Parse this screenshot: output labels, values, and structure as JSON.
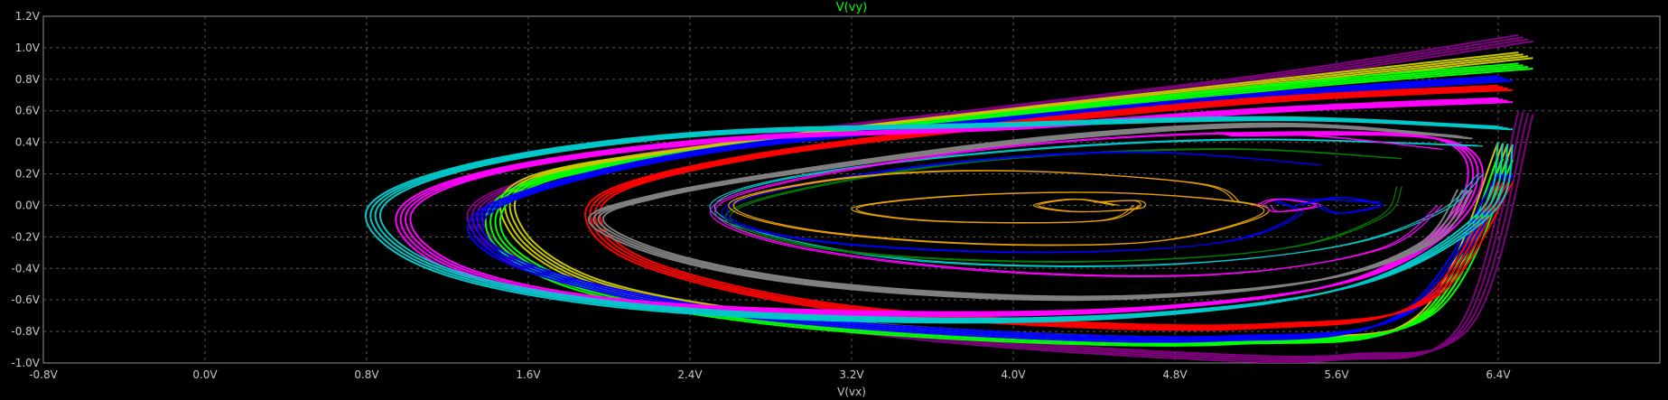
{
  "chart_data": {
    "type": "line",
    "title": "V(vy)",
    "title_color": "#00ff00",
    "xlabel": "V(vx)",
    "ylabel": "",
    "xlim": [
      -0.8,
      7.2
    ],
    "ylim": [
      -1.0,
      1.2
    ],
    "x_ticks": [
      "-0.8V",
      "0.0V",
      "0.8V",
      "1.6V",
      "2.4V",
      "3.2V",
      "4.0V",
      "4.8V",
      "5.6V",
      "6.4V"
    ],
    "y_ticks": [
      "1.2V",
      "1.0V",
      "0.8V",
      "0.6V",
      "0.4V",
      "0.2V",
      "0.0V",
      "-0.2V",
      "-0.4V",
      "-0.6V",
      "-0.8V",
      "-1.0V"
    ],
    "grid": true,
    "series": [
      {
        "color": "#800080",
        "values": [
          [
            6.5,
            1.08
          ],
          [
            5.3,
            0.84
          ],
          [
            3.9,
            0.62
          ],
          [
            2.6,
            0.42
          ],
          [
            1.7,
            0.2
          ],
          [
            1.3,
            -0.05
          ],
          [
            1.6,
            -0.42
          ],
          [
            2.5,
            -0.68
          ],
          [
            3.6,
            -0.86
          ],
          [
            4.8,
            -0.97
          ],
          [
            5.6,
            -0.98
          ],
          [
            6.2,
            -0.78
          ],
          [
            6.5,
            0.6
          ]
        ]
      },
      {
        "color": "#c8c800",
        "values": [
          [
            6.5,
            0.97
          ],
          [
            5.3,
            0.8
          ],
          [
            3.9,
            0.6
          ],
          [
            2.6,
            0.4
          ],
          [
            1.6,
            0.18
          ],
          [
            1.5,
            -0.15
          ],
          [
            1.9,
            -0.5
          ],
          [
            2.8,
            -0.72
          ],
          [
            4.0,
            -0.84
          ],
          [
            5.2,
            -0.86
          ],
          [
            6.0,
            -0.7
          ],
          [
            6.4,
            0.4
          ]
        ]
      },
      {
        "color": "#00ff00",
        "values": [
          [
            6.5,
            0.9
          ],
          [
            5.3,
            0.77
          ],
          [
            3.9,
            0.58
          ],
          [
            2.6,
            0.38
          ],
          [
            1.6,
            0.15
          ],
          [
            1.4,
            -0.18
          ],
          [
            1.8,
            -0.52
          ],
          [
            2.7,
            -0.74
          ],
          [
            3.9,
            -0.86
          ],
          [
            5.1,
            -0.88
          ],
          [
            6.0,
            -0.72
          ],
          [
            6.4,
            0.3
          ]
        ]
      },
      {
        "color": "#0000ff",
        "values": [
          [
            6.4,
            0.82
          ],
          [
            5.3,
            0.72
          ],
          [
            3.9,
            0.55
          ],
          [
            2.5,
            0.36
          ],
          [
            1.6,
            0.1
          ],
          [
            1.3,
            -0.14
          ],
          [
            1.6,
            -0.42
          ],
          [
            2.5,
            -0.68
          ],
          [
            3.7,
            -0.82
          ],
          [
            5.0,
            -0.86
          ],
          [
            5.9,
            -0.7
          ],
          [
            6.4,
            0.2
          ]
        ]
      },
      {
        "color": "#ff0000",
        "values": [
          [
            6.4,
            0.76
          ],
          [
            5.2,
            0.68
          ],
          [
            3.9,
            0.52
          ],
          [
            2.7,
            0.32
          ],
          [
            2.0,
            0.1
          ],
          [
            1.9,
            -0.14
          ],
          [
            2.2,
            -0.4
          ],
          [
            3.0,
            -0.64
          ],
          [
            4.1,
            -0.76
          ],
          [
            5.2,
            -0.78
          ],
          [
            6.0,
            -0.62
          ],
          [
            6.4,
            0.15
          ]
        ]
      },
      {
        "color": "#ff00ff",
        "values": [
          [
            6.4,
            0.68
          ],
          [
            5.3,
            0.62
          ],
          [
            3.9,
            0.5
          ],
          [
            2.5,
            0.42
          ],
          [
            1.4,
            0.22
          ],
          [
            0.95,
            -0.05
          ],
          [
            1.2,
            -0.4
          ],
          [
            2.0,
            -0.62
          ],
          [
            3.4,
            -0.7
          ],
          [
            4.7,
            -0.66
          ],
          [
            5.7,
            -0.46
          ],
          [
            6.2,
            0.0
          ],
          [
            6.1,
            0.42
          ],
          [
            5.0,
            0.46
          ]
        ]
      },
      {
        "color": "#808080",
        "values": [
          [
            6.2,
            0.44
          ],
          [
            5.3,
            0.52
          ],
          [
            4.2,
            0.44
          ],
          [
            3.0,
            0.24
          ],
          [
            2.2,
            0.06
          ],
          [
            1.9,
            -0.1
          ],
          [
            2.3,
            -0.34
          ],
          [
            3.1,
            -0.52
          ],
          [
            4.3,
            -0.6
          ],
          [
            5.4,
            -0.5
          ],
          [
            6.0,
            -0.25
          ],
          [
            6.2,
            0.1
          ]
        ]
      },
      {
        "color": "#00c8c8",
        "values": [
          [
            6.4,
            0.5
          ],
          [
            5.3,
            0.56
          ],
          [
            3.9,
            0.52
          ],
          [
            2.4,
            0.46
          ],
          [
            1.3,
            0.26
          ],
          [
            0.8,
            -0.03
          ],
          [
            1.1,
            -0.4
          ],
          [
            2.0,
            -0.64
          ],
          [
            3.4,
            -0.74
          ],
          [
            4.7,
            -0.7
          ],
          [
            5.7,
            -0.5
          ],
          [
            6.3,
            -0.05
          ],
          [
            6.4,
            0.4
          ]
        ]
      },
      {
        "color": "#00c8c8",
        "values": [
          [
            6.3,
            0.38
          ],
          [
            5.1,
            0.42
          ],
          [
            3.9,
            0.34
          ],
          [
            2.9,
            0.18
          ],
          [
            2.5,
            0.0
          ],
          [
            2.8,
            -0.2
          ],
          [
            3.6,
            -0.36
          ],
          [
            4.7,
            -0.38
          ],
          [
            5.6,
            -0.26
          ],
          [
            6.1,
            -0.04
          ],
          [
            6.3,
            0.2
          ]
        ]
      },
      {
        "color": "#008000",
        "values": [
          [
            5.9,
            0.3
          ],
          [
            5.0,
            0.36
          ],
          [
            3.8,
            0.28
          ],
          [
            2.8,
            0.06
          ],
          [
            2.6,
            -0.12
          ],
          [
            3.2,
            -0.3
          ],
          [
            4.3,
            -0.36
          ],
          [
            5.3,
            -0.28
          ],
          [
            5.8,
            -0.08
          ],
          [
            5.9,
            0.12
          ]
        ]
      },
      {
        "color": "#ff00ff",
        "values": [
          [
            6.1,
            0.36
          ],
          [
            5.2,
            0.46
          ],
          [
            4.0,
            0.38
          ],
          [
            2.9,
            0.16
          ],
          [
            2.5,
            -0.04
          ],
          [
            2.9,
            -0.26
          ],
          [
            3.9,
            -0.42
          ],
          [
            5.0,
            -0.44
          ],
          [
            5.8,
            -0.28
          ],
          [
            6.1,
            0.0
          ]
        ]
      },
      {
        "color": "#0000ff",
        "values": [
          [
            5.5,
            0.26
          ],
          [
            4.6,
            0.34
          ],
          [
            3.6,
            0.26
          ],
          [
            2.7,
            0.06
          ],
          [
            2.6,
            -0.1
          ],
          [
            3.1,
            -0.24
          ],
          [
            4.1,
            -0.3
          ],
          [
            5.0,
            -0.24
          ],
          [
            5.4,
            -0.06
          ],
          [
            5.3,
            0.04
          ],
          [
            5.8,
            0.02
          ]
        ]
      },
      {
        "color": "#e8a000",
        "values": [
          [
            5.1,
            0.02
          ],
          [
            4.9,
            0.14
          ],
          [
            4.0,
            0.22
          ],
          [
            3.2,
            0.18
          ],
          [
            2.6,
            0.02
          ],
          [
            2.9,
            -0.14
          ],
          [
            3.7,
            -0.24
          ],
          [
            4.6,
            -0.24
          ],
          [
            5.1,
            -0.12
          ],
          [
            5.2,
            0.0
          ],
          [
            4.5,
            0.08
          ],
          [
            3.7,
            0.06
          ],
          [
            3.2,
            -0.02
          ],
          [
            3.6,
            -0.1
          ],
          [
            4.4,
            -0.1
          ],
          [
            4.6,
            0.0
          ]
        ]
      },
      {
        "color": "#e8a000",
        "values": [
          [
            4.5,
            0.0
          ],
          [
            4.3,
            0.04
          ],
          [
            4.1,
            0.0
          ],
          [
            4.3,
            -0.04
          ],
          [
            4.6,
            -0.02
          ],
          [
            4.6,
            0.03
          ],
          [
            4.4,
            0.02
          ]
        ]
      },
      {
        "color": "#ff00ff",
        "values": [
          [
            5.2,
            0.0
          ],
          [
            5.3,
            0.04
          ],
          [
            5.5,
            0.0
          ],
          [
            5.3,
            -0.04
          ],
          [
            5.25,
            0.0
          ]
        ]
      },
      {
        "color": "#0000ff",
        "values": [
          [
            5.4,
            0.0
          ],
          [
            5.6,
            0.05
          ],
          [
            5.8,
            0.0
          ],
          [
            5.6,
            -0.05
          ],
          [
            5.5,
            0.0
          ]
        ]
      }
    ]
  }
}
